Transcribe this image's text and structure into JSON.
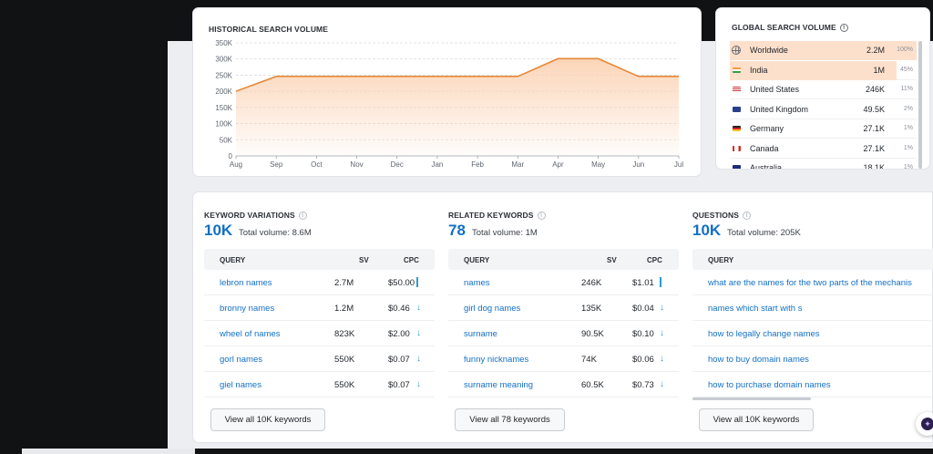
{
  "historical": {
    "title": "HISTORICAL SEARCH VOLUME"
  },
  "chart_data": {
    "type": "area",
    "x": [
      "Aug",
      "Sep",
      "Oct",
      "Nov",
      "Dec",
      "Jan",
      "Feb",
      "Mar",
      "Apr",
      "May",
      "Jun",
      "Jul"
    ],
    "values": [
      200000,
      246000,
      246000,
      246000,
      246000,
      246000,
      246000,
      246000,
      301000,
      301000,
      246000,
      246000
    ],
    "y_ticks": [
      "0",
      "50K",
      "100K",
      "150K",
      "200K",
      "250K",
      "300K",
      "350K"
    ],
    "ylim": [
      0,
      350000
    ],
    "grid": true,
    "colors": {
      "line": "#e8893a",
      "fill": "#fbd3b4"
    }
  },
  "global": {
    "title": "GLOBAL SEARCH VOLUME",
    "info": "i",
    "rows": [
      {
        "name": "Worldwide",
        "value": "2.2M",
        "pct": "100%",
        "share": 1.0,
        "icon": "globe-icon"
      },
      {
        "name": "India",
        "value": "1M",
        "pct": "45%",
        "share": 0.45,
        "icon": "flag-india-icon"
      },
      {
        "name": "United States",
        "value": "246K",
        "pct": "11%",
        "share": 0.11,
        "icon": "flag-us-icon"
      },
      {
        "name": "United Kingdom",
        "value": "49.5K",
        "pct": "2%",
        "share": 0.02,
        "icon": "flag-uk-icon"
      },
      {
        "name": "Germany",
        "value": "27.1K",
        "pct": "1%",
        "share": 0.01,
        "icon": "flag-germany-icon"
      },
      {
        "name": "Canada",
        "value": "27.1K",
        "pct": "1%",
        "share": 0.01,
        "icon": "flag-canada-icon"
      },
      {
        "name": "Australia",
        "value": "18.1K",
        "pct": "1%",
        "share": 0.01,
        "icon": "flag-australia-icon"
      }
    ]
  },
  "variations": {
    "title": "KEYWORD VARIATIONS",
    "count": "10K",
    "total": "Total volume: 8.6M",
    "headers": {
      "query": "QUERY",
      "sv": "SV",
      "cpc": "CPC"
    },
    "rows": [
      {
        "query": "lebron names",
        "sv": "2.7M",
        "cpc": "$50.00",
        "trend": "bar"
      },
      {
        "query": "bronny names",
        "sv": "1.2M",
        "cpc": "$0.46",
        "trend": "down"
      },
      {
        "query": "wheel of names",
        "sv": "823K",
        "cpc": "$2.00",
        "trend": "down"
      },
      {
        "query": "gorl names",
        "sv": "550K",
        "cpc": "$0.07",
        "trend": "down"
      },
      {
        "query": "giel names",
        "sv": "550K",
        "cpc": "$0.07",
        "trend": "down"
      }
    ],
    "button": "View all 10K keywords"
  },
  "related": {
    "title": "RELATED KEYWORDS",
    "count": "78",
    "total": "Total volume: 1M",
    "headers": {
      "query": "QUERY",
      "sv": "SV",
      "cpc": "CPC"
    },
    "rows": [
      {
        "query": "names",
        "sv": "246K",
        "cpc": "$1.01",
        "trend": "bar"
      },
      {
        "query": "girl dog names",
        "sv": "135K",
        "cpc": "$0.04",
        "trend": "down"
      },
      {
        "query": "surname",
        "sv": "90.5K",
        "cpc": "$0.10",
        "trend": "down"
      },
      {
        "query": "funny nicknames",
        "sv": "74K",
        "cpc": "$0.06",
        "trend": "down"
      },
      {
        "query": "surname meaning",
        "sv": "60.5K",
        "cpc": "$0.73",
        "trend": "down"
      }
    ],
    "button": "View all 78 keywords"
  },
  "questions": {
    "title": "QUESTIONS",
    "count": "10K",
    "total": "Total volume: 205K",
    "headers": {
      "query": "QUERY"
    },
    "rows": [
      {
        "query": "what are the names for the two parts of the mechanis"
      },
      {
        "query": "names which start with s"
      },
      {
        "query": "how to legally change names"
      },
      {
        "query": "how to buy domain names"
      },
      {
        "query": "how to purchase domain names"
      }
    ],
    "button": "View all 10K keywords"
  },
  "trend_glyphs": {
    "down": "↓"
  }
}
